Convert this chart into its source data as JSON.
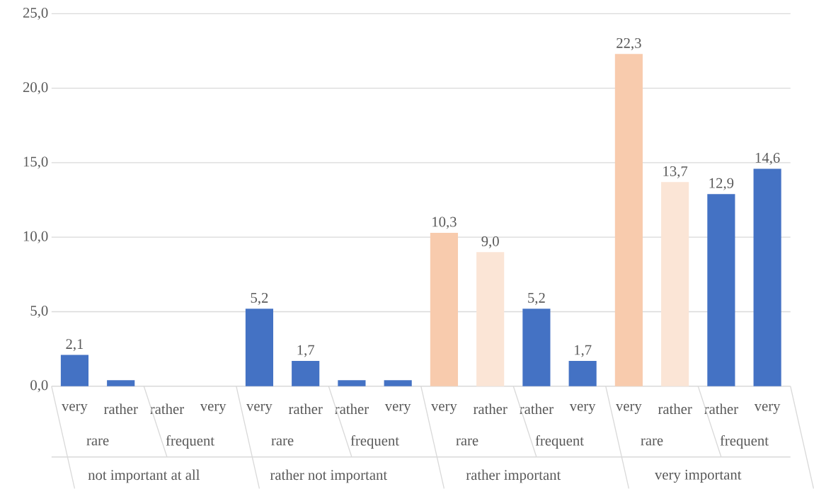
{
  "chart_data": {
    "type": "bar",
    "categories": [
      "very",
      "rather",
      "rather",
      "very",
      "very",
      "rather",
      "rather",
      "very",
      "very",
      "rather",
      "rather",
      "very",
      "very",
      "rather",
      "rather",
      "very"
    ],
    "values": [
      2.1,
      0.4,
      0,
      0,
      5.2,
      1.7,
      0.4,
      0.4,
      10.3,
      9.0,
      5.2,
      1.7,
      22.3,
      13.7,
      12.9,
      14.6
    ],
    "value_labels": [
      "2,1",
      null,
      null,
      null,
      "5,2",
      "1,7",
      null,
      null,
      "10,3",
      "9,0",
      "5,2",
      "1,7",
      "22,3",
      "13,7",
      "12,9",
      "14,6"
    ],
    "colors": [
      "#4472c4",
      "#4472c4",
      "#4472c4",
      "#4472c4",
      "#4472c4",
      "#4472c4",
      "#4472c4",
      "#4472c4",
      "#f8cbad",
      "#fbe5d6",
      "#4472c4",
      "#4472c4",
      "#f8cbad",
      "#fbe5d6",
      "#4472c4",
      "#4472c4"
    ],
    "ylim": [
      0,
      25
    ],
    "yticks": [
      {
        "value": 0,
        "label": "0,0"
      },
      {
        "value": 5,
        "label": "5,0"
      },
      {
        "value": 10,
        "label": "10,0"
      },
      {
        "value": 15,
        "label": "15,0"
      },
      {
        "value": 20,
        "label": "20,0"
      },
      {
        "value": 25,
        "label": "25,0"
      }
    ],
    "grid": "y",
    "annotations": [
      "rare",
      "frequent",
      "rare",
      "frequent",
      "rare",
      "frequent",
      "rare",
      "frequent",
      "not important at all",
      "rather not important",
      "rather important",
      "very important"
    ]
  }
}
